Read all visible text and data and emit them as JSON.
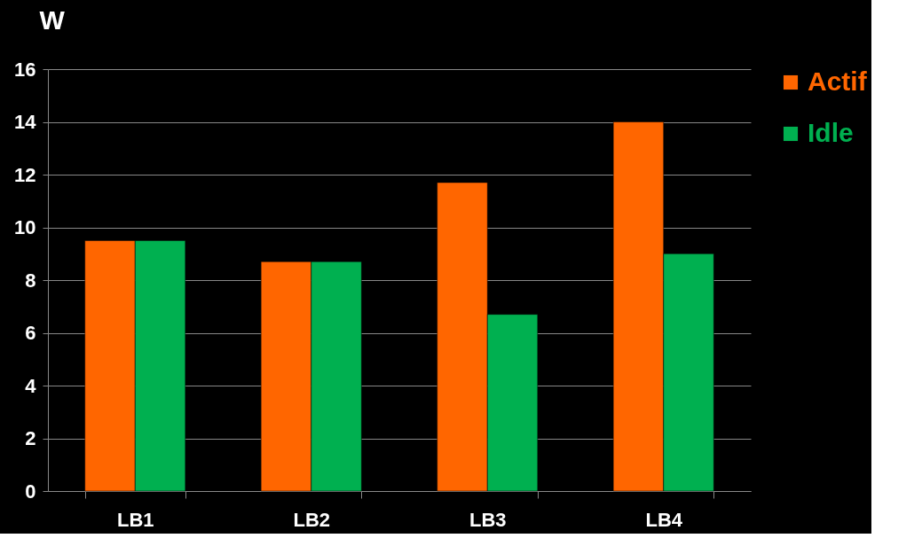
{
  "chart_data": {
    "type": "bar",
    "ylabel": "W",
    "categories": [
      "LB1",
      "LB2",
      "LB3",
      "LB4"
    ],
    "series": [
      {
        "name": "Actif",
        "color": "#ff6600",
        "values": [
          9.5,
          8.7,
          11.7,
          14.0
        ]
      },
      {
        "name": "Idle",
        "color": "#00b050",
        "values": [
          9.5,
          8.7,
          6.7,
          9.0
        ]
      }
    ],
    "ylim": [
      0,
      16
    ],
    "yticks": [
      0,
      2,
      4,
      6,
      8,
      10,
      12,
      14,
      16
    ],
    "grid": "y",
    "legend": "right"
  }
}
